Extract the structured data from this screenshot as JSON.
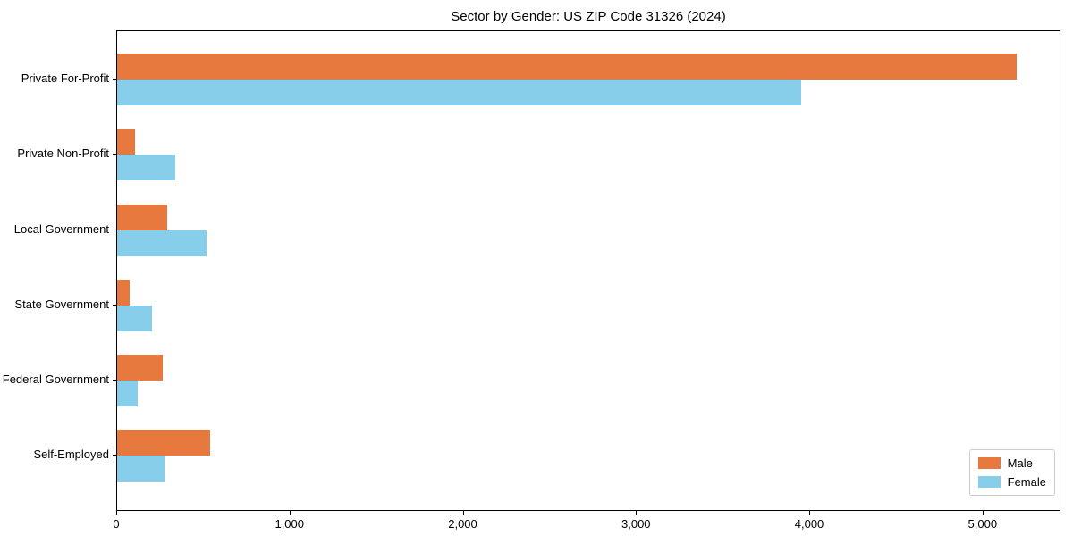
{
  "title": "Sector by Gender: US ZIP Code 31326 (2024)",
  "chart_data": {
    "type": "bar",
    "orientation": "horizontal",
    "title": "Sector by Gender: US ZIP Code 31326 (2024)",
    "categories": [
      "Private For-Profit",
      "Private Non-Profit",
      "Local Government",
      "State Government",
      "Federal Government",
      "Self-Employed"
    ],
    "series": [
      {
        "name": "Male",
        "color": "#E8793E",
        "values": [
          5190,
          105,
          290,
          70,
          265,
          535
        ]
      },
      {
        "name": "Female",
        "color": "#87CEEB",
        "values": [
          3950,
          335,
          515,
          200,
          120,
          275
        ]
      }
    ],
    "xlabel": "",
    "ylabel": "",
    "xlim": [
      0,
      5450
    ],
    "x_ticks": [
      0,
      1000,
      2000,
      3000,
      4000,
      5000
    ],
    "x_tick_labels": [
      "0",
      "1,000",
      "2,000",
      "3,000",
      "4,000",
      "5,000"
    ],
    "grid": false,
    "legend_position": "lower right"
  }
}
